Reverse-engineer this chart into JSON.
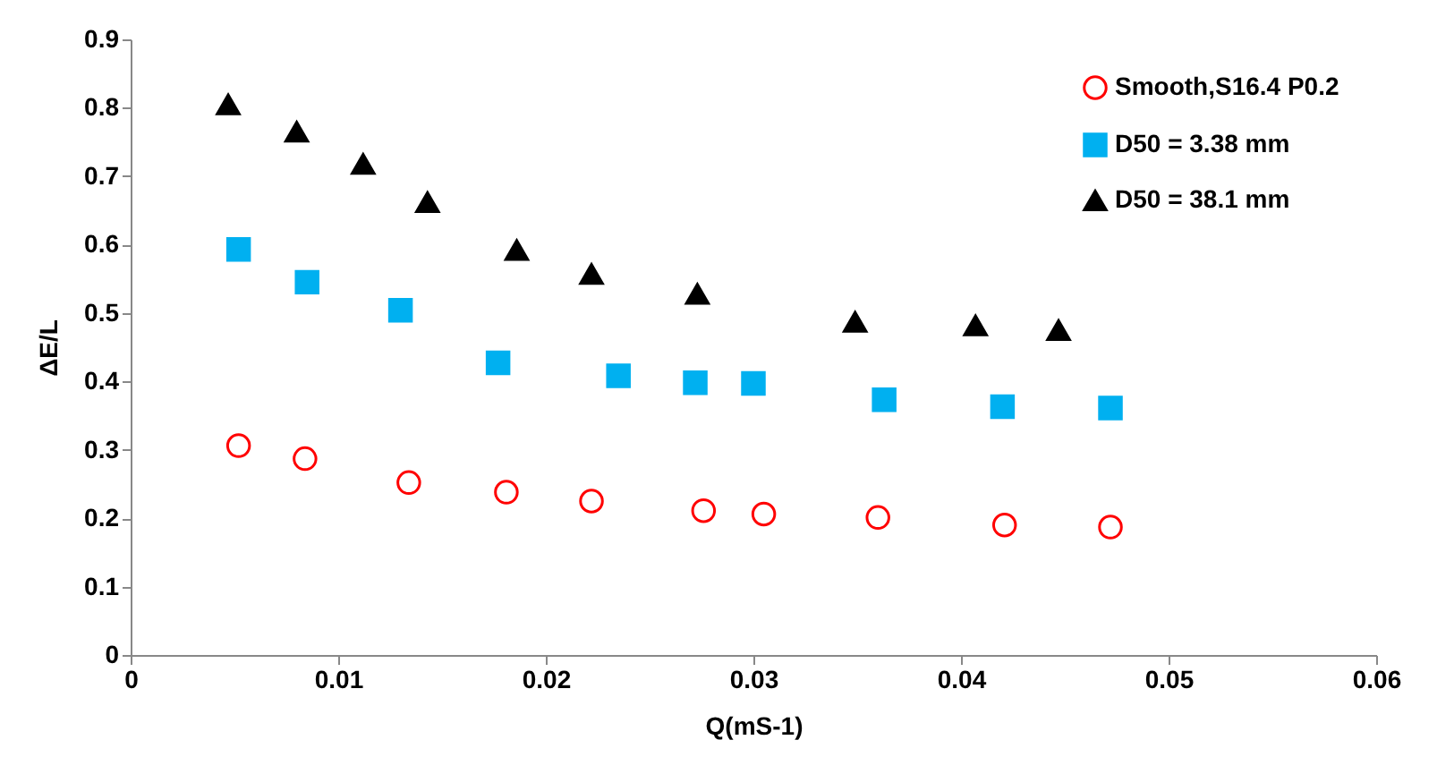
{
  "chart_data": {
    "type": "scatter",
    "xlabel": "Q(mS-1)",
    "ylabel": "ΔE/L",
    "xlim": [
      0,
      0.06
    ],
    "xticks": [
      0,
      0.01,
      0.02,
      0.03,
      0.04,
      0.05,
      0.06
    ],
    "ylim": [
      0,
      0.9
    ],
    "yticks": [
      0,
      0.1,
      0.2,
      0.3,
      0.4,
      0.5,
      0.6,
      0.7,
      0.8,
      0.9
    ],
    "grid": false,
    "legend": "top right",
    "series": [
      {
        "name": "Smooth,S16.4 P0.2",
        "color": "#ff0000",
        "marker": "circle",
        "x": [
          0.0052,
          0.0084,
          0.0134,
          0.0181,
          0.0222,
          0.0276,
          0.0305,
          0.036,
          0.0421,
          0.0472
        ],
        "values": [
          0.306,
          0.287,
          0.252,
          0.238,
          0.225,
          0.211,
          0.206,
          0.201,
          0.19,
          0.187
        ]
      },
      {
        "name": "D50 = 3.38 mm",
        "color": "#00b0f0",
        "marker": "square",
        "x": [
          0.0052,
          0.0085,
          0.013,
          0.0177,
          0.0235,
          0.0272,
          0.03,
          0.0363,
          0.042,
          0.0472
        ],
        "values": [
          0.593,
          0.545,
          0.504,
          0.427,
          0.408,
          0.398,
          0.397,
          0.373,
          0.363,
          0.361
        ]
      },
      {
        "name": "D50 = 38.1 mm",
        "color": "#000000",
        "marker": "triangle",
        "x": [
          0.0047,
          0.008,
          0.0112,
          0.0143,
          0.0186,
          0.0222,
          0.0273,
          0.0349,
          0.0407,
          0.0447
        ],
        "values": [
          0.805,
          0.765,
          0.718,
          0.662,
          0.592,
          0.557,
          0.528,
          0.487,
          0.482,
          0.475
        ]
      }
    ]
  }
}
